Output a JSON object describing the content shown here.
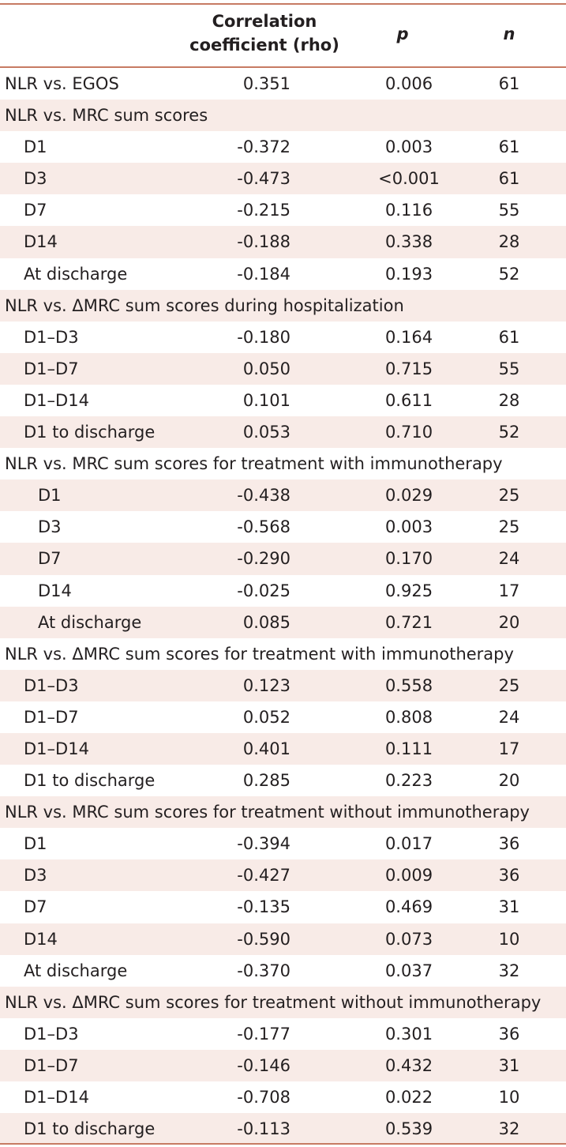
{
  "header": {
    "rho_line1": "Correlation",
    "rho_line2": "coefficient (rho)",
    "p": "p",
    "n": "n"
  },
  "rows": [
    {
      "label": "NLR vs. EGOS",
      "rho": "0.351",
      "p": "0.006",
      "n": "61"
    },
    {
      "label": "NLR vs. MRC sum scores",
      "rho": "",
      "p": "",
      "n": ""
    },
    {
      "label": "D1",
      "rho": "-0.372",
      "p": "0.003",
      "n": "61"
    },
    {
      "label": "D3",
      "rho": "-0.473",
      "p": "<0.001",
      "n": "61"
    },
    {
      "label": "D7",
      "rho": "-0.215",
      "p": "0.116",
      "n": "55"
    },
    {
      "label": "D14",
      "rho": "-0.188",
      "p": "0.338",
      "n": "28"
    },
    {
      "label": "At discharge",
      "rho": "-0.184",
      "p": "0.193",
      "n": "52"
    },
    {
      "label": "NLR vs. ΔMRC sum scores during hospitalization",
      "rho": "",
      "p": "",
      "n": ""
    },
    {
      "label": "D1–D3",
      "rho": "-0.180",
      "p": "0.164",
      "n": "61"
    },
    {
      "label": "D1–D7",
      "rho": "0.050",
      "p": "0.715",
      "n": "55"
    },
    {
      "label": "D1–D14",
      "rho": "0.101",
      "p": "0.611",
      "n": "28"
    },
    {
      "label": "D1 to discharge",
      "rho": "0.053",
      "p": "0.710",
      "n": "52"
    },
    {
      "label": "NLR vs. MRC sum scores for treatment with immunotherapy",
      "rho": "",
      "p": "",
      "n": ""
    },
    {
      "label": "D1",
      "rho": "-0.438",
      "p": "0.029",
      "n": "25"
    },
    {
      "label": "D3",
      "rho": "-0.568",
      "p": "0.003",
      "n": "25"
    },
    {
      "label": "D7",
      "rho": "-0.290",
      "p": "0.170",
      "n": "24"
    },
    {
      "label": "D14",
      "rho": "-0.025",
      "p": "0.925",
      "n": "17"
    },
    {
      "label": "At discharge",
      "rho": "0.085",
      "p": "0.721",
      "n": "20"
    },
    {
      "label": "NLR vs. ΔMRC sum scores for treatment with immunotherapy",
      "rho": "",
      "p": "",
      "n": ""
    },
    {
      "label": "D1–D3",
      "rho": "0.123",
      "p": "0.558",
      "n": "25"
    },
    {
      "label": "D1–D7",
      "rho": "0.052",
      "p": "0.808",
      "n": "24"
    },
    {
      "label": "D1–D14",
      "rho": "0.401",
      "p": "0.111",
      "n": "17"
    },
    {
      "label": "D1 to discharge",
      "rho": "0.285",
      "p": "0.223",
      "n": "20"
    },
    {
      "label": "NLR vs. MRC sum scores for treatment without immunotherapy",
      "rho": "",
      "p": "",
      "n": ""
    },
    {
      "label": "D1",
      "rho": "-0.394",
      "p": "0.017",
      "n": "36"
    },
    {
      "label": "D3",
      "rho": "-0.427",
      "p": "0.009",
      "n": "36"
    },
    {
      "label": "D7",
      "rho": "-0.135",
      "p": "0.469",
      "n": "31"
    },
    {
      "label": "D14",
      "rho": "-0.590",
      "p": "0.073",
      "n": "10"
    },
    {
      "label": "At discharge",
      "rho": "-0.370",
      "p": "0.037",
      "n": "32"
    },
    {
      "label": "NLR vs. ΔMRC sum scores for treatment without immunotherapy",
      "rho": "",
      "p": "",
      "n": ""
    },
    {
      "label": "D1–D3",
      "rho": "-0.177",
      "p": "0.301",
      "n": "36"
    },
    {
      "label": "D1–D7",
      "rho": "-0.146",
      "p": "0.432",
      "n": "31"
    },
    {
      "label": "D1–D14",
      "rho": "-0.708",
      "p": "0.022",
      "n": "10"
    },
    {
      "label": "D1 to discharge",
      "rho": "-0.113",
      "p": "0.539",
      "n": "32"
    }
  ],
  "colors": {
    "rule": "#c77b63",
    "shade": "#f8ebe7",
    "text": "#231f20"
  }
}
